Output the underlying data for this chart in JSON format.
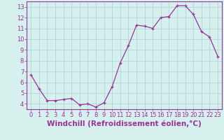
{
  "x": [
    0,
    1,
    2,
    3,
    4,
    5,
    6,
    7,
    8,
    9,
    10,
    11,
    12,
    13,
    14,
    15,
    16,
    17,
    18,
    19,
    20,
    21,
    22,
    23
  ],
  "y": [
    6.7,
    5.4,
    4.3,
    4.3,
    4.4,
    4.5,
    3.9,
    4.0,
    3.7,
    4.1,
    5.6,
    7.8,
    9.4,
    11.3,
    11.2,
    11.0,
    12.0,
    12.1,
    13.1,
    13.1,
    12.3,
    10.7,
    10.2,
    8.4
  ],
  "line_color": "#993399",
  "marker": "+",
  "bg_color": "#d6f0ee",
  "grid_color": "#b0d8d8",
  "xlabel": "Windchill (Refroidissement éolien,°C)",
  "xlim": [
    -0.5,
    23.5
  ],
  "ylim": [
    3.5,
    13.5
  ],
  "yticks": [
    4,
    5,
    6,
    7,
    8,
    9,
    10,
    11,
    12,
    13
  ],
  "xticks": [
    0,
    1,
    2,
    3,
    4,
    5,
    6,
    7,
    8,
    9,
    10,
    11,
    12,
    13,
    14,
    15,
    16,
    17,
    18,
    19,
    20,
    21,
    22,
    23
  ],
  "tick_label_fontsize": 6.0,
  "xlabel_fontsize": 7.5
}
